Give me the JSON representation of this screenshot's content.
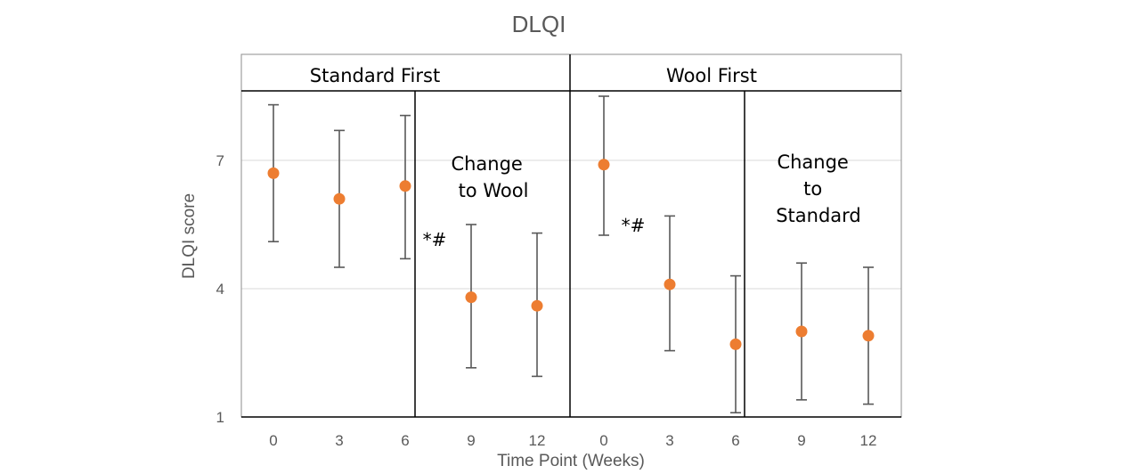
{
  "chart_data": {
    "type": "scatter",
    "title": "DLQI",
    "xlabel": "Time Point (Weeks)",
    "ylabel": "DLQI score",
    "ylim": [
      1,
      8.8
    ],
    "yticks": [
      "1",
      "4",
      "7"
    ],
    "grid": true,
    "legend": "none",
    "marker_color": "#ED7D31",
    "errorbar_color": "#595959",
    "groups": [
      {
        "label": "Standard First",
        "categories": [
          "0",
          "3",
          "6",
          "9",
          "12"
        ],
        "values": [
          6.7,
          6.1,
          6.4,
          3.8,
          3.6
        ],
        "error_low": [
          5.1,
          4.5,
          4.7,
          2.15,
          1.95
        ],
        "error_high": [
          8.3,
          7.7,
          8.05,
          5.5,
          5.3
        ],
        "phase_annotation": "Change to Wool",
        "phase_annotation_lines": [
          "Change",
          "to Wool"
        ],
        "significance_marker": "*#"
      },
      {
        "label": "Wool First",
        "categories": [
          "0",
          "3",
          "6",
          "9",
          "12"
        ],
        "values": [
          6.9,
          4.1,
          2.7,
          3.0,
          2.9
        ],
        "error_low": [
          5.25,
          2.55,
          1.1,
          1.4,
          1.3
        ],
        "error_high": [
          8.5,
          5.7,
          4.3,
          4.6,
          4.5
        ],
        "phase_annotation": "Change to Standard",
        "phase_annotation_lines": [
          "Change",
          "to",
          "Standard"
        ],
        "significance_marker": "*#"
      }
    ]
  }
}
